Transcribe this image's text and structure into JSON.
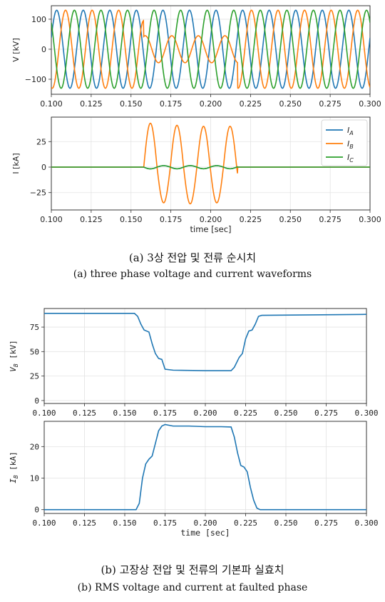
{
  "captions": {
    "a_korean": "(a) 3상 전압 및 전류 순시치",
    "a_english": "(a) three phase voltage and current waveforms",
    "b_korean": "(b) 고장상 전압 및 전류의 기본파 실효치",
    "b_english": "(b) RMS voltage and current at faulted phase"
  },
  "colors": {
    "A": "#1f77b4",
    "B": "#ff7f0e",
    "C": "#2ca02c"
  },
  "chart_data": [
    {
      "type": "line",
      "ylabel": "V [kV]",
      "xlim": [
        0.1,
        0.3
      ],
      "ylim": [
        -150,
        145
      ],
      "x_ticks": [
        "0.100",
        "0.125",
        "0.150",
        "0.175",
        "0.200",
        "0.225",
        "0.250",
        "0.275",
        "0.300"
      ],
      "y_ticks": [
        "100",
        "0",
        "−100"
      ],
      "grid": true,
      "waveform": {
        "frequency_hz": 60,
        "amplitude_kv": 130,
        "faulted_phase": "B",
        "fault_interval": [
          0.158,
          0.217
        ],
        "faulted_amplitude_kv": 45
      },
      "series": [
        {
          "phase": "A",
          "color": "#1f77b4"
        },
        {
          "phase": "B",
          "color": "#ff7f0e"
        },
        {
          "phase": "C",
          "color": "#2ca02c"
        }
      ]
    },
    {
      "type": "line",
      "ylabel": "I [kA]",
      "xlabel": "time [sec]",
      "xlim": [
        0.1,
        0.3
      ],
      "ylim": [
        -42,
        49
      ],
      "x_ticks": [
        "0.100",
        "0.125",
        "0.150",
        "0.175",
        "0.200",
        "0.225",
        "0.250",
        "0.275",
        "0.300"
      ],
      "y_ticks": [
        "25",
        "0",
        "−25"
      ],
      "grid": true,
      "legend": {
        "position": "top-right",
        "entries": [
          "I_A",
          "I_B",
          "I_C"
        ]
      },
      "waveform": {
        "faulted_phase": "B",
        "fault_interval": [
          0.158,
          0.217
        ],
        "peaks_ka": [
          43,
          41,
          40,
          40
        ],
        "troughs_ka": [
          -35,
          -36,
          -35
        ]
      },
      "series": [
        {
          "name": "I_A",
          "color": "#1f77b4"
        },
        {
          "name": "I_B",
          "color": "#ff7f0e"
        },
        {
          "name": "I_C",
          "color": "#2ca02c"
        }
      ]
    },
    {
      "type": "line",
      "ylabel": "V_B [kV]",
      "xlim": [
        0.1,
        0.3
      ],
      "ylim": [
        -3,
        94
      ],
      "x_ticks": [
        "0.100",
        "0.125",
        "0.150",
        "0.175",
        "0.200",
        "0.225",
        "0.250",
        "0.275",
        "0.300"
      ],
      "y_ticks": [
        "75",
        "50",
        "25",
        "0"
      ],
      "grid": true,
      "series": [
        {
          "name": "V_B",
          "color": "#1f77b4",
          "x": [
            0.1,
            0.156,
            0.158,
            0.16,
            0.162,
            0.165,
            0.167,
            0.169,
            0.171,
            0.173,
            0.175,
            0.18,
            0.2,
            0.216,
            0.218,
            0.221,
            0.223,
            0.225,
            0.227,
            0.229,
            0.231,
            0.233,
            0.235,
            0.3
          ],
          "y": [
            89,
            89,
            86,
            78,
            72,
            70,
            58,
            48,
            43,
            42,
            32,
            31,
            30.5,
            30.5,
            34,
            44,
            48,
            63,
            71,
            72,
            78,
            86,
            87,
            88
          ]
        }
      ]
    },
    {
      "type": "line",
      "ylabel": "I_B [kA]",
      "xlabel": "time [sec]",
      "xlim": [
        0.1,
        0.3
      ],
      "ylim": [
        -1.2,
        28
      ],
      "x_ticks": [
        "0.100",
        "0.125",
        "0.150",
        "0.175",
        "0.200",
        "0.225",
        "0.250",
        "0.275",
        "0.300"
      ],
      "y_ticks": [
        "20",
        "10",
        "0"
      ],
      "grid": true,
      "series": [
        {
          "name": "I_B",
          "color": "#1f77b4",
          "x": [
            0.1,
            0.157,
            0.159,
            0.161,
            0.163,
            0.165,
            0.167,
            0.169,
            0.171,
            0.173,
            0.175,
            0.18,
            0.19,
            0.2,
            0.21,
            0.216,
            0.218,
            0.22,
            0.222,
            0.224,
            0.226,
            0.228,
            0.23,
            0.232,
            0.234,
            0.3
          ],
          "y": [
            0,
            0,
            2,
            10,
            14.5,
            16,
            17,
            21,
            25,
            26.5,
            27,
            26.5,
            26.5,
            26.3,
            26.3,
            26.2,
            23,
            18,
            14,
            13.5,
            12,
            7,
            3,
            0.5,
            0,
            0
          ]
        }
      ]
    }
  ]
}
